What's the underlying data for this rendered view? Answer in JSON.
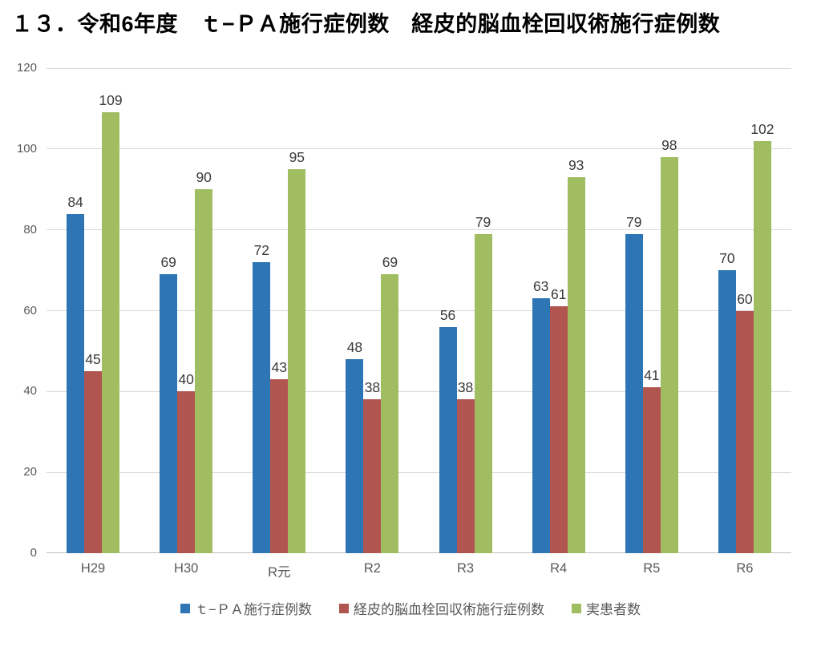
{
  "title": "１３．令和6年度　ｔ−ＰＡ施行症例数　経皮的脳血栓回収術施行症例数",
  "chart_data": {
    "type": "bar",
    "title": "１３．令和6年度　ｔ−ＰＡ施行症例数　経皮的脳血栓回収術施行症例数",
    "categories": [
      "H29",
      "H30",
      "R元",
      "R2",
      "R3",
      "R4",
      "R5",
      "R6"
    ],
    "series": [
      {
        "name": "ｔ−ＰＡ施行症例数",
        "color": "#2E75B6",
        "values": [
          84,
          69,
          72,
          48,
          56,
          63,
          79,
          70
        ]
      },
      {
        "name": "経皮的脳血栓回収術施行症例数",
        "color": "#B05550",
        "values": [
          45,
          40,
          43,
          38,
          38,
          61,
          41,
          60
        ]
      },
      {
        "name": "実患者数",
        "color": "#A0BE61",
        "values": [
          109,
          90,
          95,
          69,
          79,
          93,
          98,
          102
        ]
      }
    ],
    "xlabel": "",
    "ylabel": "",
    "ylim": [
      0,
      120
    ],
    "yticks": [
      0,
      20,
      40,
      60,
      80,
      100,
      120
    ],
    "grid": true,
    "data_labels": true,
    "legend_position": "bottom"
  },
  "colors": {
    "gridline": "#D9D9D9",
    "axis_line": "#BFBFBF",
    "tick_label": "#595959",
    "value_label": "#3A3A3A",
    "background": "#FFFFFF"
  }
}
